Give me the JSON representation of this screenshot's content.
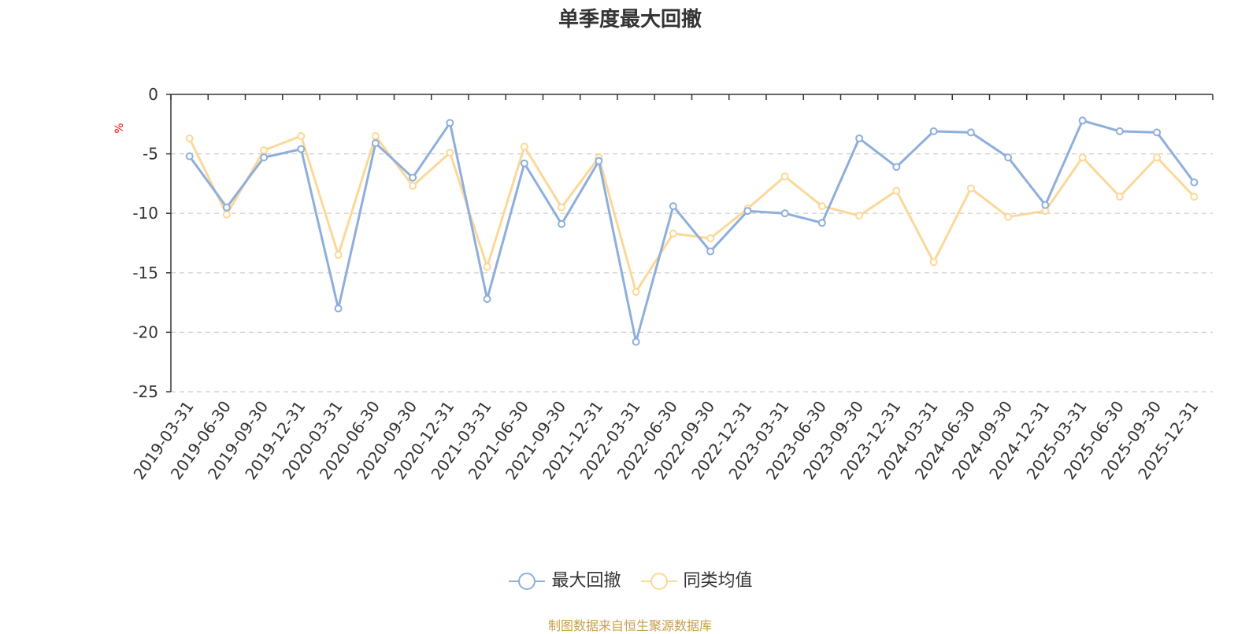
{
  "chart_data": {
    "type": "line",
    "title": "单季度最大回撤",
    "ylabel": "%",
    "xlabel": "",
    "ylim": [
      -25,
      0
    ],
    "yticks": [
      0,
      -5,
      -10,
      -15,
      -20,
      -25
    ],
    "grid": true,
    "legend_position": "bottom-center",
    "categories": [
      "2019-03-31",
      "2019-06-30",
      "2019-09-30",
      "2019-12-31",
      "2020-03-31",
      "2020-06-30",
      "2020-09-30",
      "2020-12-31",
      "2021-03-31",
      "2021-06-30",
      "2021-09-30",
      "2021-12-31",
      "2022-03-31",
      "2022-06-30",
      "2022-09-30",
      "2022-12-31",
      "2023-03-31",
      "2023-06-30",
      "2023-09-30",
      "2023-12-31",
      "2024-03-31",
      "2024-06-30",
      "2024-09-30",
      "2024-12-31",
      "2025-03-31",
      "2025-06-30",
      "2025-09-30",
      "2025-12-31"
    ],
    "series": [
      {
        "name": "最大回撤",
        "color": "#8eaedc",
        "values": [
          -5.2,
          -9.5,
          -5.3,
          -4.6,
          -18.0,
          -4.1,
          -7.0,
          -2.4,
          -17.2,
          -5.8,
          -10.9,
          -5.6,
          -20.8,
          -9.4,
          -13.2,
          -9.8,
          -10.0,
          -10.8,
          -3.7,
          -6.1,
          -3.1,
          -3.2,
          -5.3,
          -9.3,
          -2.2,
          -3.1,
          -3.2,
          -7.4
        ]
      },
      {
        "name": "同类均值",
        "color": "#fbd898",
        "values": [
          -3.7,
          -10.1,
          -4.7,
          -3.5,
          -13.5,
          -3.5,
          -7.7,
          -4.9,
          -14.5,
          -4.4,
          -9.5,
          -5.3,
          -16.6,
          -11.7,
          -12.1,
          -9.6,
          -6.9,
          -9.4,
          -10.2,
          -8.1,
          -14.1,
          -7.9,
          -10.3,
          -9.8,
          -5.3,
          -8.6,
          -5.3,
          -8.6
        ]
      }
    ]
  },
  "source_text": "制图数据来自恒生聚源数据库"
}
